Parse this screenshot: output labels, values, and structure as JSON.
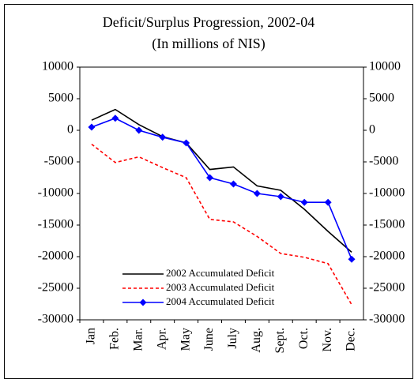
{
  "chart_data": {
    "type": "line",
    "title": "Deficit/Surplus Progression, 2002-04",
    "subtitle": "(In millions of NIS)",
    "categories": [
      "Jan",
      "Feb.",
      "Mar.",
      "Apr.",
      "May",
      "June",
      "July",
      "Aug.",
      "Sept.",
      "Oct.",
      "Nov.",
      "Dec."
    ],
    "series": [
      {
        "name": "2002 Accumulated Deficit",
        "color": "#000000",
        "dash": false,
        "marker": false,
        "values": [
          1600,
          3300,
          900,
          -1000,
          -2000,
          -6200,
          -5800,
          -8800,
          -9500,
          -12500,
          -16000,
          -19300
        ]
      },
      {
        "name": "2003 Accumulated Deficit",
        "color": "#ff0000",
        "dash": true,
        "marker": false,
        "values": [
          -2200,
          -5100,
          -4200,
          -5900,
          -7500,
          -14100,
          -14500,
          -16800,
          -19500,
          -20100,
          -21100,
          -27600
        ]
      },
      {
        "name": "2004 Accumulated Deficit",
        "color": "#0000ff",
        "dash": false,
        "marker": true,
        "values": [
          500,
          1900,
          0,
          -1100,
          -2000,
          -7500,
          -8500,
          -10000,
          -10500,
          -11400,
          -11400,
          -20400
        ]
      }
    ],
    "ylim": [
      -30000,
      10000
    ],
    "yticks": [
      10000,
      5000,
      0,
      -5000,
      -10000,
      -15000,
      -20000,
      -25000,
      -30000
    ],
    "y2lim": [
      -30000,
      10000
    ],
    "y2ticks": [
      10000,
      5000,
      0,
      -5000,
      -10000,
      -15000,
      -20000,
      -25000,
      -30000
    ],
    "grid": false,
    "legend": "lower left"
  }
}
